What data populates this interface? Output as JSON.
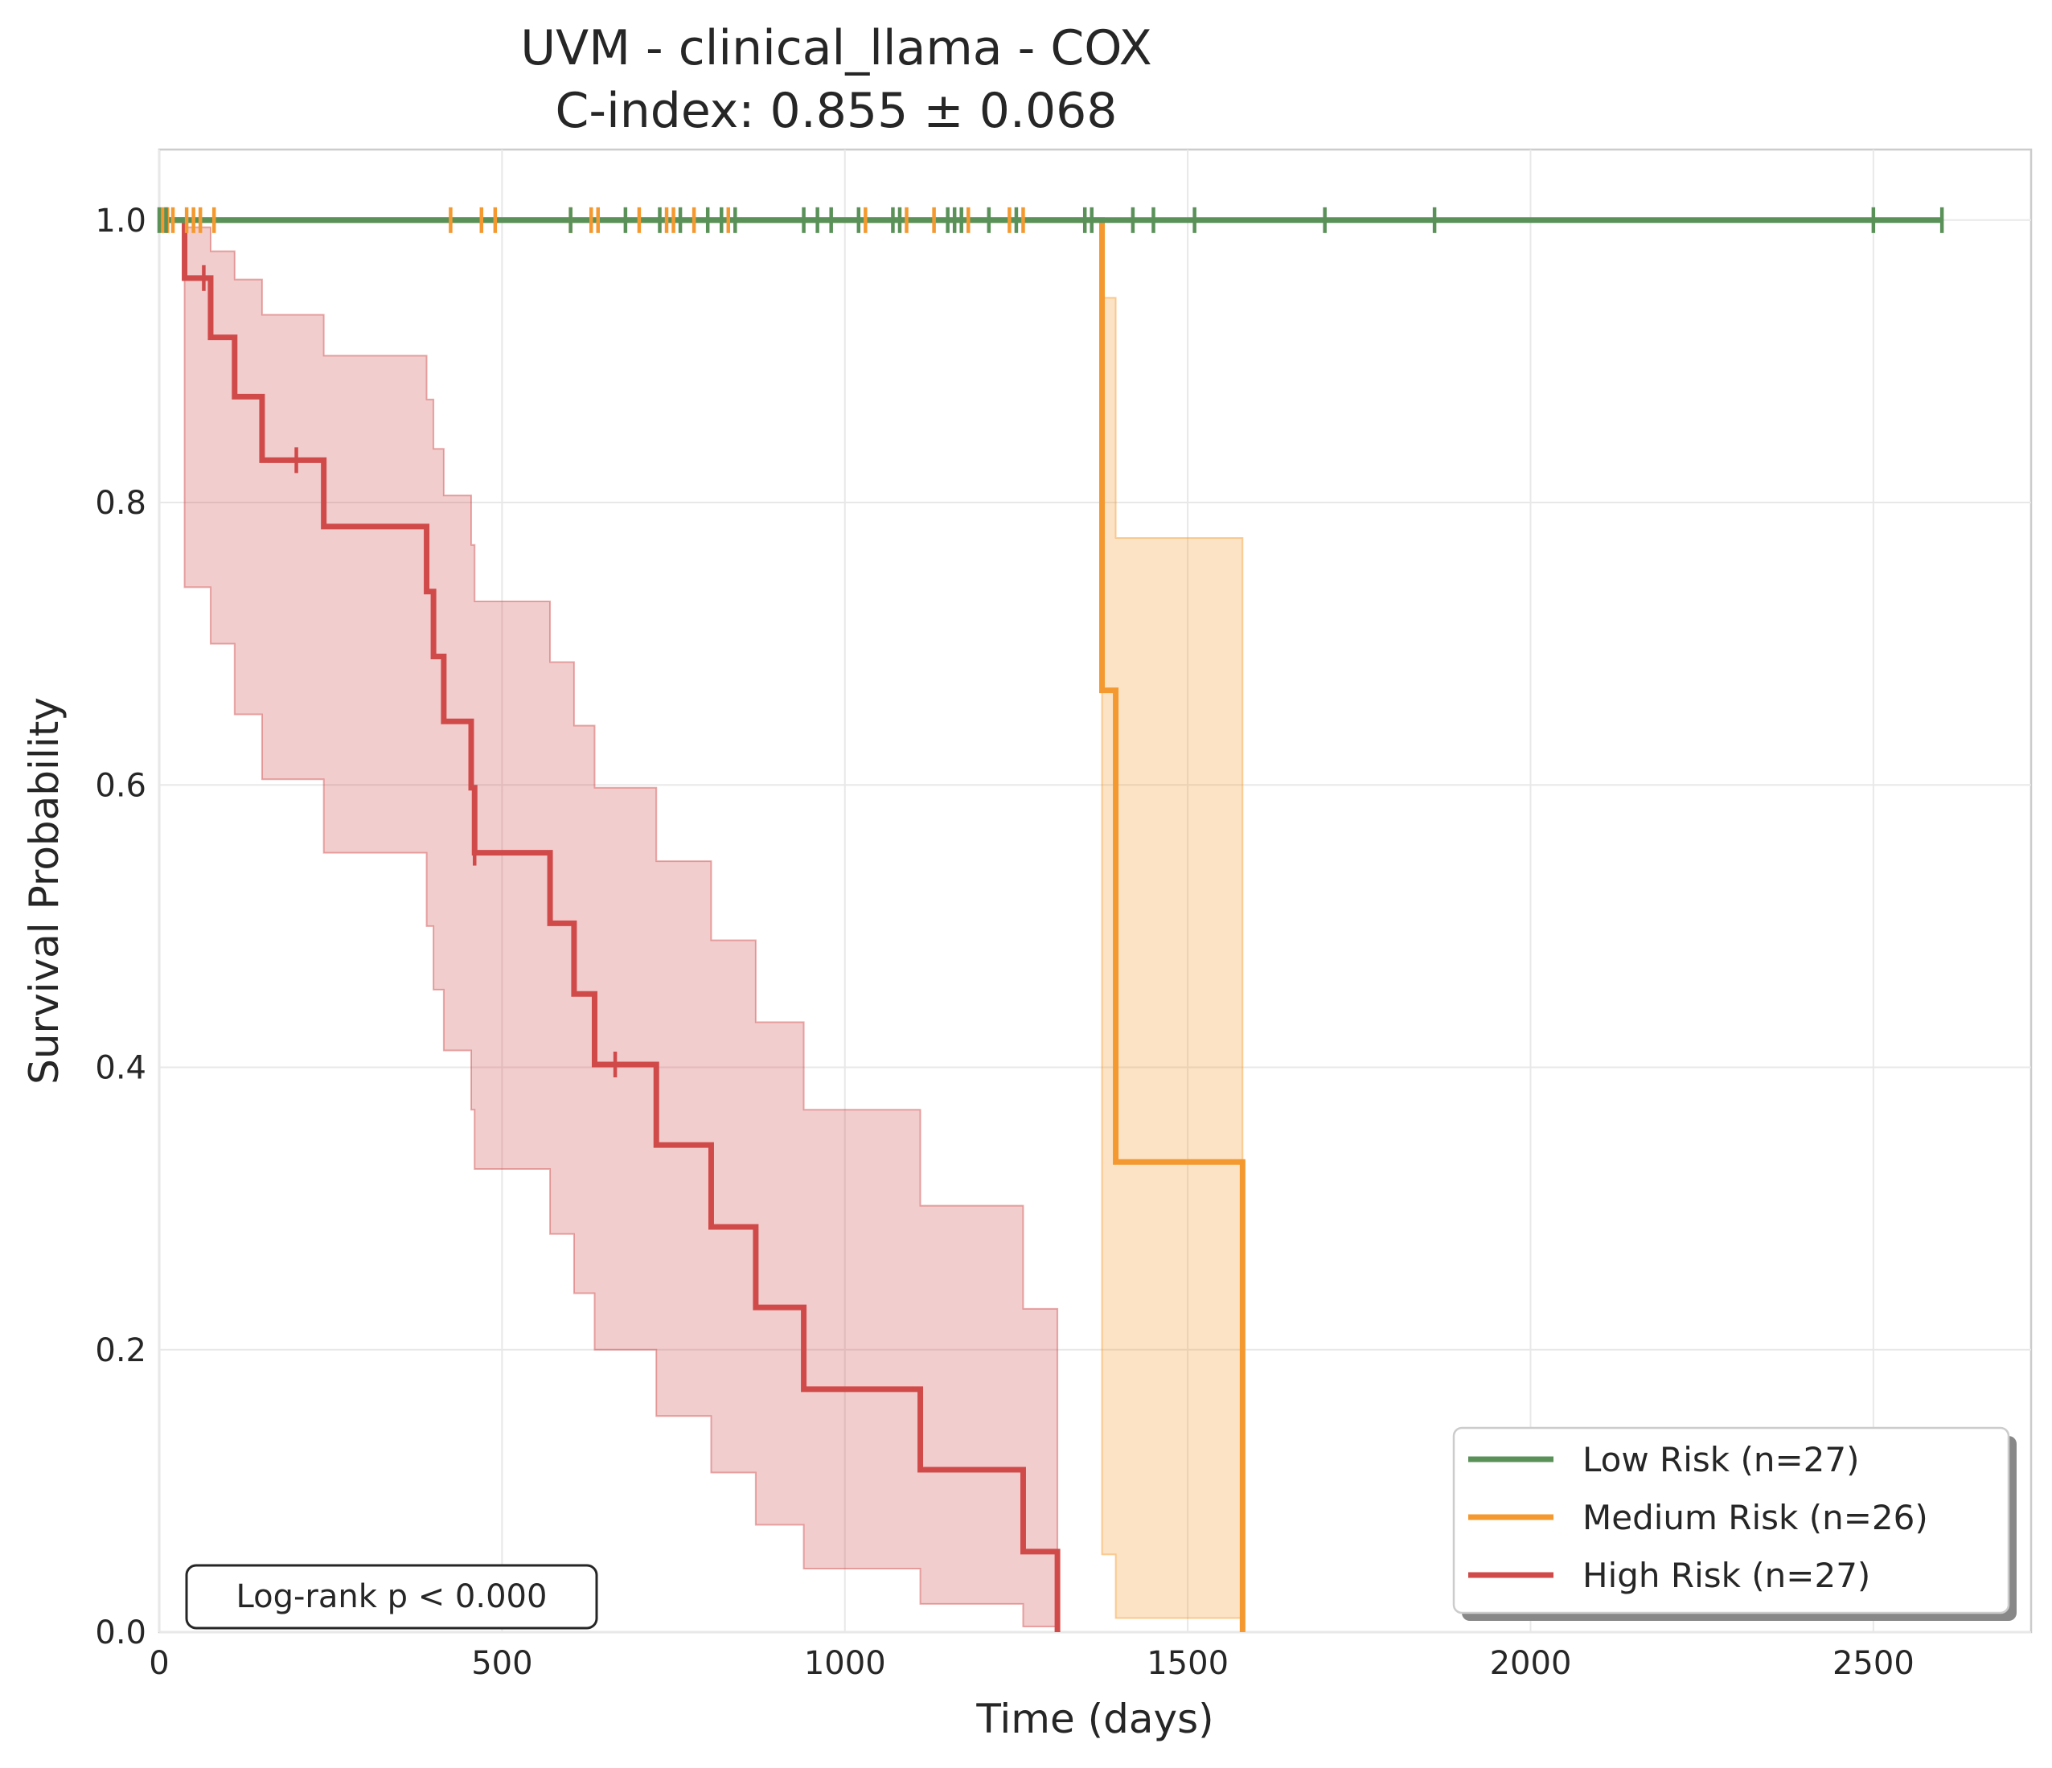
{
  "chart_data": {
    "type": "line",
    "title_line1": "UVM - clinical_llama - COX",
    "title_line2": "C-index: 0.855 ± 0.068",
    "xlabel": "Time (days)",
    "ylabel": "Survival Probability",
    "xlim": [
      0,
      2730
    ],
    "ylim": [
      0,
      1.05
    ],
    "xticks": [
      0,
      500,
      1000,
      1500,
      2000,
      2500
    ],
    "yticks": [
      0.0,
      0.2,
      0.4,
      0.6,
      0.8,
      1.0
    ],
    "xtick_labels": [
      "0",
      "500",
      "1000",
      "1500",
      "2000",
      "2500"
    ],
    "ytick_labels": [
      "0.0",
      "0.2",
      "0.4",
      "0.6",
      "0.8",
      "1.0"
    ],
    "grid": true,
    "legend_position": "lower-right",
    "annotation": "Log-rank p < 0.000",
    "series": [
      {
        "name": "Low Risk (n=27)",
        "color": "#5a9159",
        "steps": [
          [
            0,
            1.0
          ],
          [
            2600,
            1.0
          ]
        ],
        "ci": [],
        "censors": [
          0,
          10,
          600,
          680,
          730,
          760,
          800,
          820,
          840,
          940,
          960,
          980,
          1020,
          1070,
          1080,
          1150,
          1160,
          1170,
          1210,
          1250,
          1350,
          1360,
          1420,
          1450,
          1510,
          1700,
          1860,
          2500,
          2600
        ]
      },
      {
        "name": "Medium Risk (n=26)",
        "color": "#f4992f",
        "steps": [
          [
            0,
            1.0
          ],
          [
            1375,
            0.667
          ],
          [
            1395,
            0.333
          ],
          [
            1580,
            0.0
          ]
        ],
        "ci": [
          [
            0,
            1.0,
            1.0
          ],
          [
            1375,
            0.055,
            0.945
          ],
          [
            1395,
            0.01,
            0.775
          ],
          [
            1580,
            0.0,
            0.775
          ]
        ],
        "censors": [
          5,
          12,
          20,
          40,
          50,
          60,
          80,
          425,
          470,
          490,
          600,
          630,
          640,
          700,
          740,
          750,
          780,
          830,
          1030,
          1090,
          1130,
          1180,
          1240,
          1260
        ]
      },
      {
        "name": "High Risk (n=27)",
        "color": "#d14a4a",
        "steps": [
          [
            0,
            1.0
          ],
          [
            37,
            0.959
          ],
          [
            75,
            0.917
          ],
          [
            110,
            0.875
          ],
          [
            150,
            0.83
          ],
          [
            240,
            0.783
          ],
          [
            390,
            0.737
          ],
          [
            400,
            0.691
          ],
          [
            415,
            0.645
          ],
          [
            455,
            0.598
          ],
          [
            460,
            0.552
          ],
          [
            570,
            0.502
          ],
          [
            605,
            0.452
          ],
          [
            635,
            0.402
          ],
          [
            725,
            0.345
          ],
          [
            805,
            0.287
          ],
          [
            870,
            0.23
          ],
          [
            940,
            0.172
          ],
          [
            1110,
            0.115
          ],
          [
            1260,
            0.057
          ],
          [
            1310,
            0.0
          ]
        ],
        "ci": [
          [
            0,
            1.0,
            1.0
          ],
          [
            37,
            0.74,
            0.995
          ],
          [
            75,
            0.7,
            0.978
          ],
          [
            110,
            0.65,
            0.958
          ],
          [
            150,
            0.604,
            0.933
          ],
          [
            240,
            0.552,
            0.904
          ],
          [
            390,
            0.5,
            0.873
          ],
          [
            400,
            0.455,
            0.838
          ],
          [
            415,
            0.412,
            0.805
          ],
          [
            455,
            0.37,
            0.77
          ],
          [
            460,
            0.328,
            0.73
          ],
          [
            570,
            0.282,
            0.687
          ],
          [
            605,
            0.24,
            0.642
          ],
          [
            635,
            0.2,
            0.598
          ],
          [
            725,
            0.153,
            0.546
          ],
          [
            805,
            0.113,
            0.49
          ],
          [
            870,
            0.076,
            0.432
          ],
          [
            940,
            0.045,
            0.37
          ],
          [
            1110,
            0.02,
            0.302
          ],
          [
            1260,
            0.004,
            0.229
          ],
          [
            1310,
            0.004,
            0.229
          ]
        ],
        "censors": [
          65,
          200,
          460,
          665
        ]
      }
    ]
  }
}
